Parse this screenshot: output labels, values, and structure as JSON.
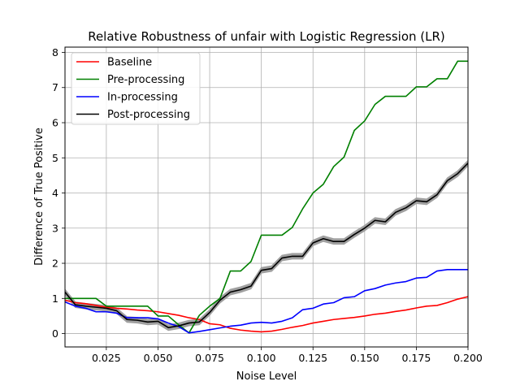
{
  "chart_data": {
    "type": "line",
    "title": "Relative Robustness of unfair with Logistic Regression (LR)",
    "xlabel": "Noise Level",
    "ylabel": "Difference of True Positive",
    "xlim": [
      0.005,
      0.2
    ],
    "ylim": [
      -0.38,
      8.15
    ],
    "grid": true,
    "legend": "top-left",
    "x_ticks": [
      0.025,
      0.05,
      0.075,
      0.1,
      0.125,
      0.15,
      0.175,
      0.2
    ],
    "x_tick_labels": [
      "0.025",
      "0.050",
      "0.075",
      "0.100",
      "0.125",
      "0.150",
      "0.175",
      "0.200"
    ],
    "y_ticks": [
      0,
      1,
      2,
      3,
      4,
      5,
      6,
      7,
      8
    ],
    "y_tick_labels": [
      "0",
      "1",
      "2",
      "3",
      "4",
      "5",
      "6",
      "7",
      "8"
    ],
    "x": [
      0.005,
      0.01,
      0.015,
      0.02,
      0.025,
      0.03,
      0.035,
      0.04,
      0.045,
      0.05,
      0.055,
      0.06,
      0.065,
      0.07,
      0.075,
      0.08,
      0.085,
      0.09,
      0.095,
      0.1,
      0.105,
      0.11,
      0.115,
      0.12,
      0.125,
      0.13,
      0.135,
      0.14,
      0.145,
      0.15,
      0.155,
      0.16,
      0.165,
      0.17,
      0.175,
      0.18,
      0.185,
      0.19,
      0.195,
      0.2
    ],
    "series": [
      {
        "name": "Baseline",
        "color": "#ff0000",
        "values": [
          0.95,
          0.88,
          0.85,
          0.8,
          0.75,
          0.72,
          0.7,
          0.67,
          0.65,
          0.62,
          0.57,
          0.52,
          0.45,
          0.4,
          0.28,
          0.25,
          0.15,
          0.1,
          0.07,
          0.05,
          0.07,
          0.12,
          0.18,
          0.23,
          0.3,
          0.35,
          0.4,
          0.43,
          0.46,
          0.5,
          0.55,
          0.58,
          0.63,
          0.67,
          0.73,
          0.78,
          0.8,
          0.88,
          0.98,
          1.05
        ]
      },
      {
        "name": "Pre-processing",
        "color": "#008000",
        "values": [
          1.0,
          1.0,
          1.0,
          1.0,
          0.78,
          0.78,
          0.78,
          0.78,
          0.78,
          0.5,
          0.5,
          0.25,
          0.02,
          0.52,
          0.78,
          1.0,
          1.78,
          1.78,
          2.05,
          2.8,
          2.8,
          2.8,
          3.02,
          3.55,
          4.0,
          4.25,
          4.75,
          5.02,
          5.78,
          6.05,
          6.52,
          6.75,
          6.75,
          6.75,
          7.02,
          7.02,
          7.25,
          7.25,
          7.75,
          7.75
        ]
      },
      {
        "name": "In-processing",
        "color": "#0000ff",
        "values": [
          0.9,
          0.78,
          0.72,
          0.62,
          0.62,
          0.58,
          0.45,
          0.45,
          0.45,
          0.42,
          0.3,
          0.2,
          0.02,
          0.06,
          0.11,
          0.16,
          0.21,
          0.24,
          0.3,
          0.32,
          0.3,
          0.35,
          0.45,
          0.68,
          0.72,
          0.84,
          0.88,
          1.02,
          1.05,
          1.22,
          1.28,
          1.38,
          1.44,
          1.48,
          1.58,
          1.6,
          1.78,
          1.82,
          1.82,
          1.82
        ]
      },
      {
        "name": "Post-processing",
        "color": "#000000",
        "values": [
          1.18,
          0.82,
          0.78,
          0.75,
          0.72,
          0.65,
          0.4,
          0.38,
          0.33,
          0.35,
          0.17,
          0.22,
          0.3,
          0.33,
          0.6,
          0.95,
          1.18,
          1.25,
          1.35,
          1.8,
          1.85,
          2.15,
          2.2,
          2.2,
          2.58,
          2.7,
          2.62,
          2.62,
          2.82,
          3.0,
          3.22,
          3.18,
          3.45,
          3.58,
          3.78,
          3.75,
          3.95,
          4.35,
          4.55,
          4.85
        ],
        "band": 0.08,
        "band_color": "#a0a0a0"
      }
    ]
  }
}
